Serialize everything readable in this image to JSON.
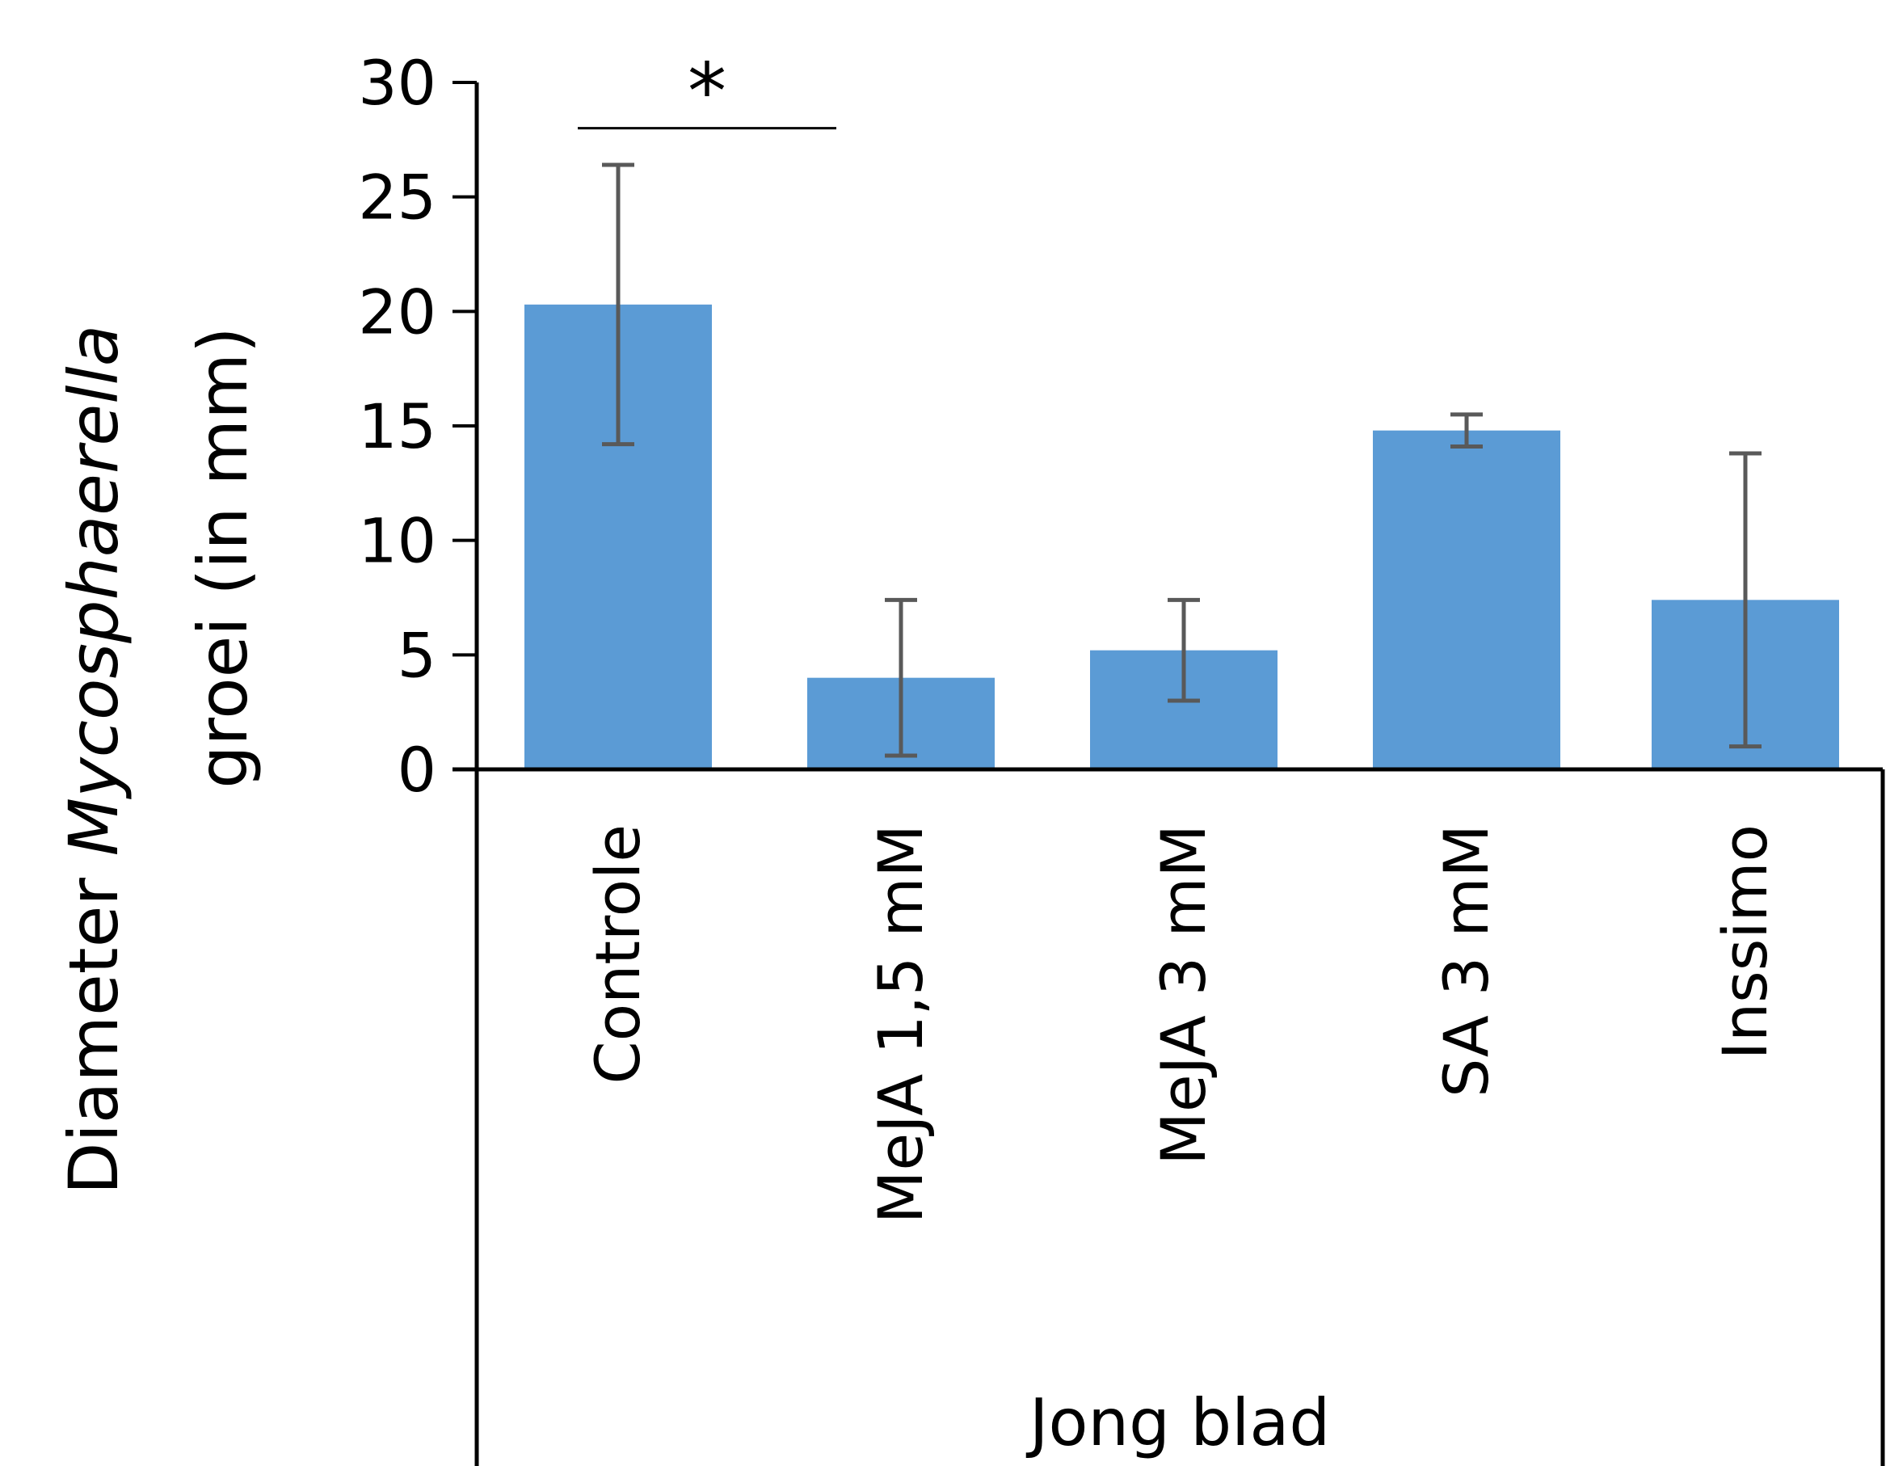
{
  "chart_data": {
    "type": "bar",
    "title": "",
    "group_label": "Jong blad",
    "ylabel": {
      "line1_prefix": "Diameter ",
      "line1_italic": "Mycosphaerella",
      "line2": "groei (in mm)"
    },
    "categories": [
      "Controle",
      "MeJA 1,5 mM",
      "MeJA 3 mM",
      "SA 3 mM",
      "Inssimo"
    ],
    "values": [
      20.3,
      4.0,
      5.2,
      14.8,
      7.4
    ],
    "error_bars": [
      6.1,
      3.4,
      2.2,
      0.7,
      6.4
    ],
    "y_ticks": [
      "0",
      "5",
      "10",
      "15",
      "20",
      "25",
      "30"
    ],
    "ylim": [
      0,
      30
    ],
    "grid": false,
    "legend": "none",
    "significance": {
      "label": "*",
      "from_category": "Controle",
      "to_category": "MeJA 1,5 mM",
      "level": 28.0
    },
    "colors": {
      "bar": "#5b9bd5",
      "error_bar": "#595959",
      "axis": "#000000"
    }
  }
}
